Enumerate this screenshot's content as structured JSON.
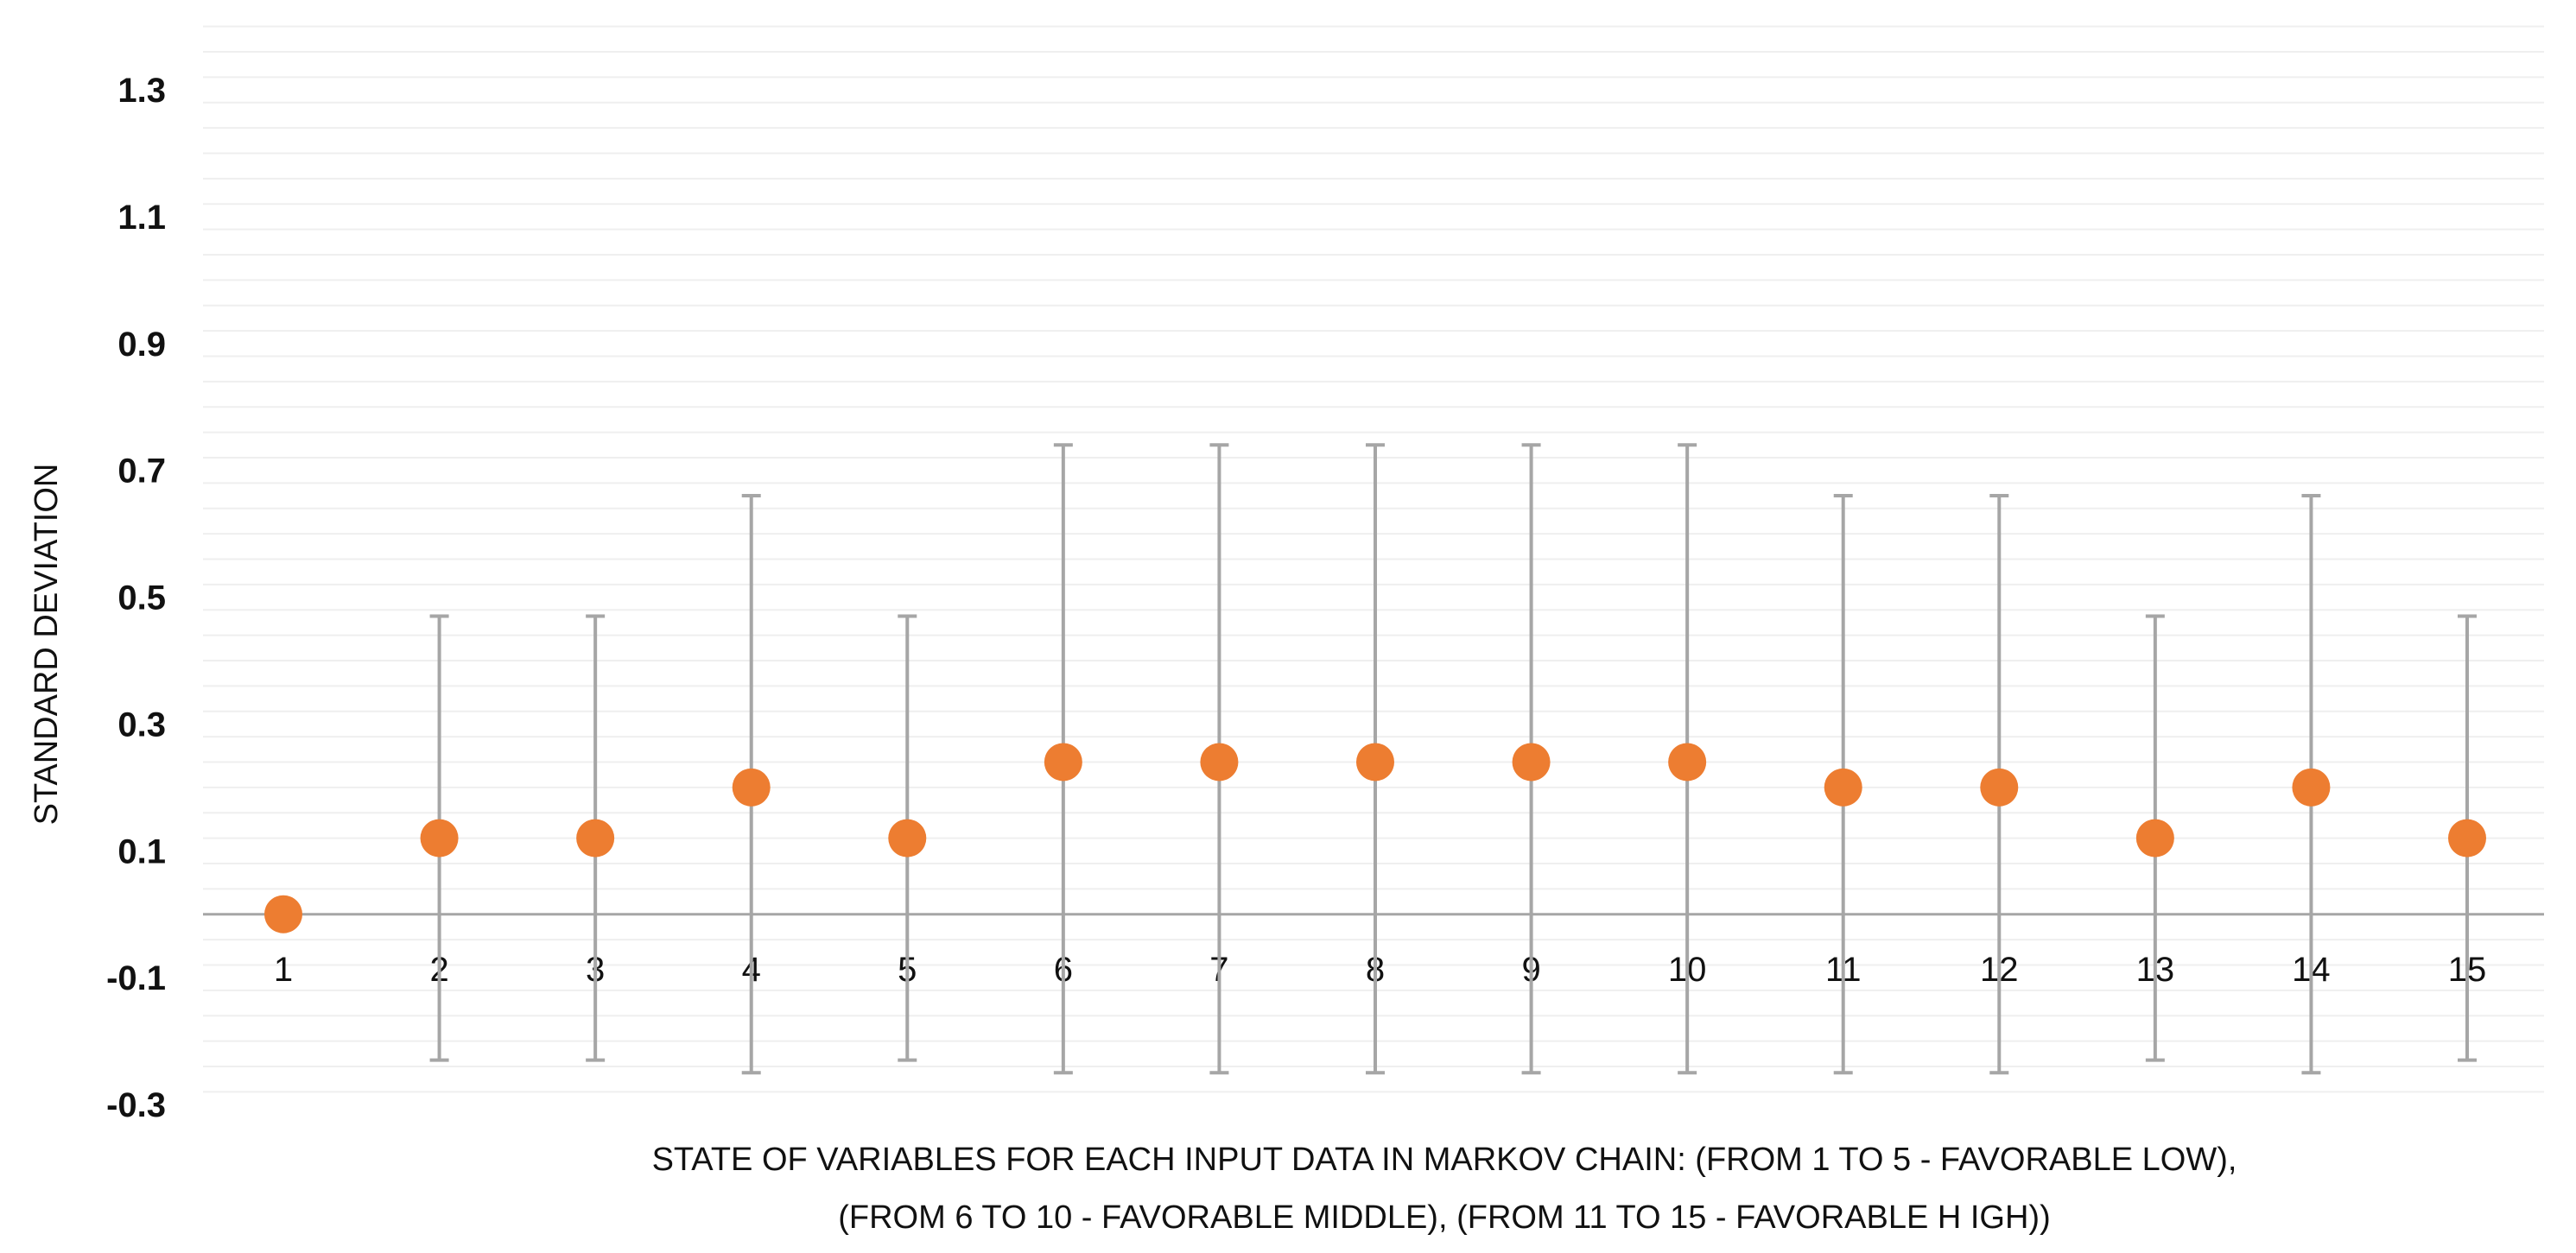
{
  "chart_data": {
    "type": "scatter",
    "title": "",
    "ylabel": "STANDARD DEVIATION",
    "xlabel_lines": [
      "STATE OF VARIABLES FOR EACH INPUT DATA IN MARKOV CHAIN: (FROM 1   TO 5 - FAVORABLE LOW),",
      "(FROM 6 TO 10 - FAVORABLE MIDDLE), (FROM 11 TO 15  - FAVORABLE H IGH))"
    ],
    "ylim": [
      -0.3,
      1.3
    ],
    "yticks": [
      "1.3",
      "1.1",
      "0.9",
      "0.7",
      "0.5",
      "0.3",
      "0.1",
      "-0.1",
      "-0.3"
    ],
    "x": [
      "1",
      "2",
      "3",
      "4",
      "5",
      "6",
      "7",
      "8",
      "9",
      "10",
      "11",
      "12",
      "13",
      "14",
      "15"
    ],
    "series": [
      {
        "values": [
          0.0,
          0.12,
          0.12,
          0.2,
          0.12,
          0.24,
          0.24,
          0.24,
          0.24,
          0.24,
          0.2,
          0.2,
          0.12,
          0.2,
          0.12
        ],
        "error_upper": [
          0.0,
          0.47,
          0.47,
          0.66,
          0.47,
          0.74,
          0.74,
          0.74,
          0.74,
          0.74,
          0.66,
          0.66,
          0.47,
          0.66,
          0.47
        ],
        "error_lower": [
          0.0,
          -0.23,
          -0.23,
          -0.25,
          -0.23,
          -0.25,
          -0.25,
          -0.25,
          -0.25,
          -0.25,
          -0.25,
          -0.25,
          -0.23,
          -0.25,
          -0.23
        ]
      }
    ],
    "colors": {
      "marker": "#ED7D31",
      "error_bar": "#A6A6A6",
      "major_grid": "#D9D9D9",
      "minor_grid": "#EFEFEF",
      "zero_line": "#A6A6A6"
    },
    "grid": true,
    "legend": "none"
  }
}
